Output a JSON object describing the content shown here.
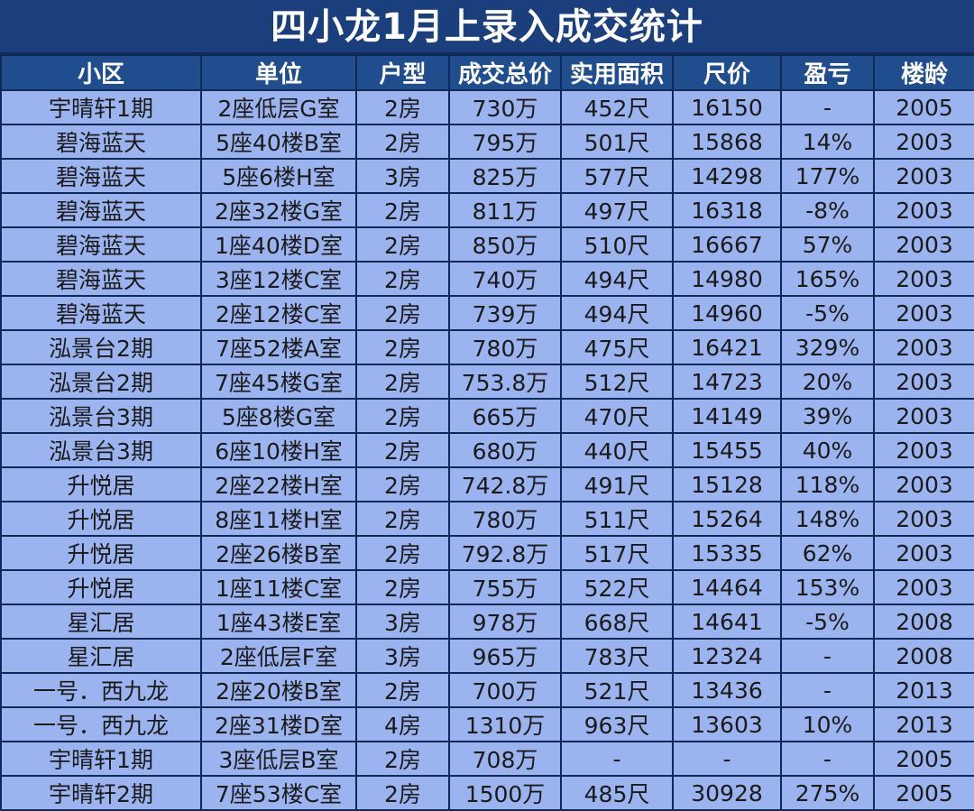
{
  "title": "四小龙1月上录入成交统计",
  "columns": [
    "小区",
    "单位",
    "户型",
    "成交总价",
    "实用面积",
    "尺价",
    "盈亏",
    "楼龄"
  ],
  "rows": [
    [
      "宇晴轩1期",
      "2座低层G室",
      "2房",
      "730万",
      "452尺",
      "16150",
      "-",
      "2005"
    ],
    [
      "碧海蓝天",
      "5座40楼B室",
      "2房",
      "795万",
      "501尺",
      "15868",
      "14%",
      "2003"
    ],
    [
      "碧海蓝天",
      "5座6楼H室",
      "3房",
      "825万",
      "577尺",
      "14298",
      "177%",
      "2003"
    ],
    [
      "碧海蓝天",
      "2座32楼G室",
      "2房",
      "811万",
      "497尺",
      "16318",
      "-8%",
      "2003"
    ],
    [
      "碧海蓝天",
      "1座40楼D室",
      "2房",
      "850万",
      "510尺",
      "16667",
      "57%",
      "2003"
    ],
    [
      "碧海蓝天",
      "3座12楼C室",
      "2房",
      "740万",
      "494尺",
      "14980",
      "165%",
      "2003"
    ],
    [
      "碧海蓝天",
      "2座12楼C室",
      "2房",
      "739万",
      "494尺",
      "14960",
      "-5%",
      "2003"
    ],
    [
      "泓景台2期",
      "7座52楼A室",
      "2房",
      "780万",
      "475尺",
      "16421",
      "329%",
      "2003"
    ],
    [
      "泓景台2期",
      "7座45楼G室",
      "2房",
      "753.8万",
      "512尺",
      "14723",
      "20%",
      "2003"
    ],
    [
      "泓景台3期",
      "5座8楼G室",
      "2房",
      "665万",
      "470尺",
      "14149",
      "39%",
      "2003"
    ],
    [
      "泓景台3期",
      "6座10楼H室",
      "2房",
      "680万",
      "440尺",
      "15455",
      "40%",
      "2003"
    ],
    [
      "升悦居",
      "2座22楼H室",
      "2房",
      "742.8万",
      "491尺",
      "15128",
      "118%",
      "2003"
    ],
    [
      "升悦居",
      "8座11楼H室",
      "2房",
      "780万",
      "511尺",
      "15264",
      "148%",
      "2003"
    ],
    [
      "升悦居",
      "2座26楼B室",
      "2房",
      "792.8万",
      "517尺",
      "15335",
      "62%",
      "2003"
    ],
    [
      "升悦居",
      "1座11楼C室",
      "2房",
      "755万",
      "522尺",
      "14464",
      "153%",
      "2003"
    ],
    [
      "星汇居",
      "1座43楼E室",
      "3房",
      "978万",
      "668尺",
      "14641",
      "-5%",
      "2008"
    ],
    [
      "星汇居",
      "2座低层F室",
      "3房",
      "965万",
      "783尺",
      "12324",
      "-",
      "2008"
    ],
    [
      "一号．西九龙",
      "2座20楼B室",
      "2房",
      "700万",
      "521尺",
      "13436",
      "-",
      "2013"
    ],
    [
      "一号．西九龙",
      "2座31楼D室",
      "4房",
      "1310万",
      "963尺",
      "13603",
      "10%",
      "2013"
    ],
    [
      "宇晴轩1期",
      "3座低层B室",
      "2房",
      "708万",
      "-",
      "-",
      "-",
      "2005"
    ],
    [
      "宇晴轩2期",
      "7座53楼C室",
      "2房",
      "1500万",
      "485尺",
      "30928",
      "275%",
      "2005"
    ]
  ]
}
